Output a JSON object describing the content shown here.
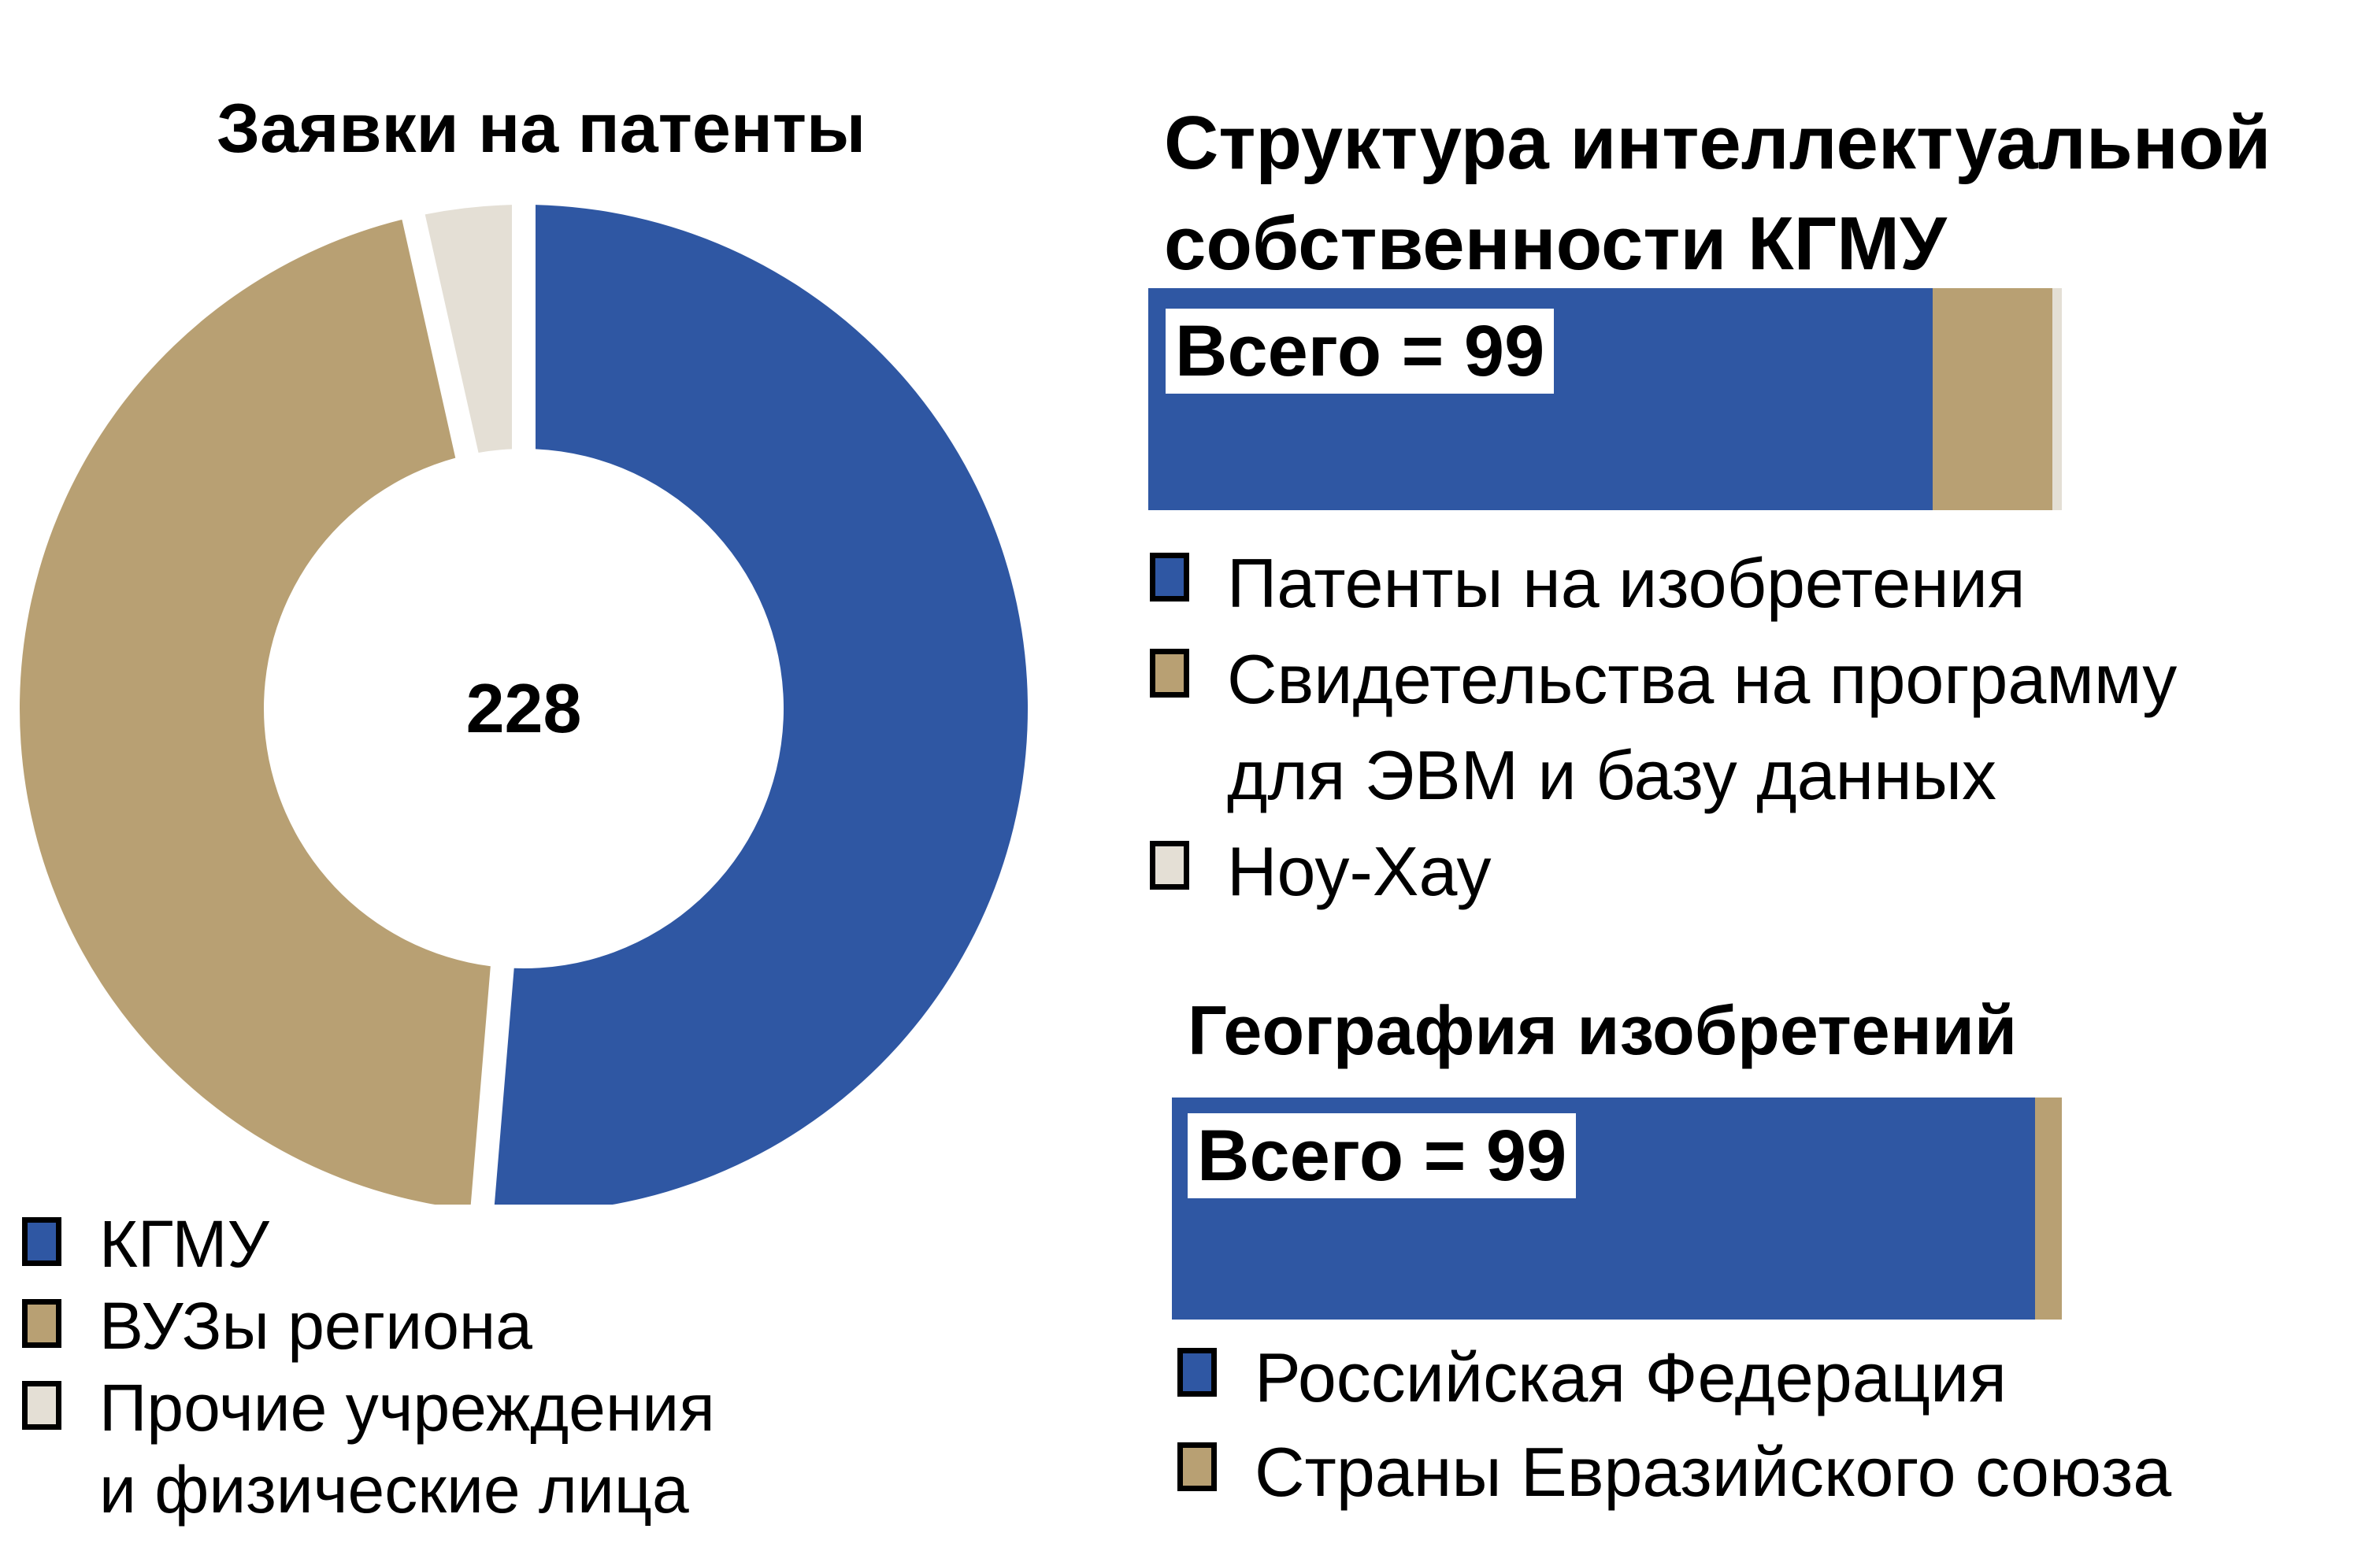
{
  "colors": {
    "blue": "#2f57a3",
    "tan": "#b8a073",
    "beige": "#e4dfd5",
    "border": "#000000"
  },
  "chart_data": [
    {
      "type": "pie",
      "variant": "donut",
      "title": "Заявки на патенты",
      "center_label": "228",
      "categories": [
        "КГМУ",
        "ВУЗы региона",
        "Прочие учреждения\nи физические лица"
      ],
      "values": [
        117,
        103,
        8
      ],
      "colors": [
        "#2f57a3",
        "#b8a073",
        "#e4dfd5"
      ],
      "legend_position": "bottom-left"
    },
    {
      "type": "bar",
      "orientation": "horizontal",
      "stacked": true,
      "title": "Структура интеллектуальной\nсобственности КГМУ",
      "total_label": "Всего = 99",
      "total": 99,
      "series": [
        {
          "name": "Патенты на изобретения",
          "values": [
            85
          ],
          "color": "#2f57a3"
        },
        {
          "name": "Свидетельства на программу\nдля ЭВМ и базу данных",
          "values": [
            13
          ],
          "color": "#b8a073"
        },
        {
          "name": "Ноу-Хау",
          "values": [
            1
          ],
          "color": "#e4dfd5"
        }
      ],
      "legend_position": "below"
    },
    {
      "type": "bar",
      "orientation": "horizontal",
      "stacked": true,
      "title": "География изобретений",
      "total_label": "Всего = 99",
      "total": 99,
      "series": [
        {
          "name": "Российская Федерация",
          "values": [
            96
          ],
          "color": "#2f57a3"
        },
        {
          "name": "Страны Евразийского союза",
          "values": [
            3
          ],
          "color": "#b8a073"
        }
      ],
      "legend_position": "below"
    }
  ]
}
